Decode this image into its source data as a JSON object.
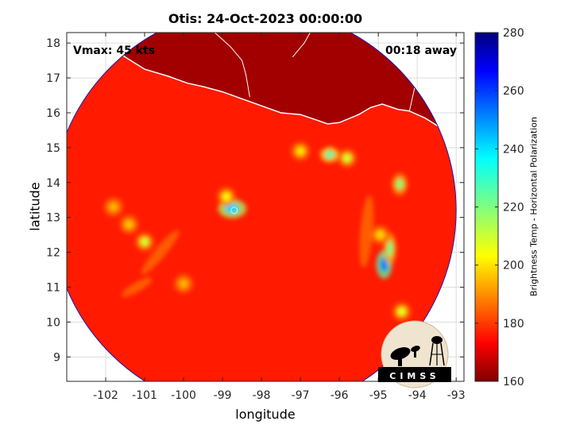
{
  "title": "Otis: 24-Oct-2023 00:00:00",
  "annotations": {
    "vmax": "Vmax: 45 kts",
    "away": "00:18 away"
  },
  "axes": {
    "xlabel": "longitude",
    "ylabel": "latitude",
    "xlim": [
      -103,
      -92.8
    ],
    "ylim": [
      8.3,
      18.3
    ],
    "xticks": [
      -102,
      -101,
      -100,
      -99,
      -98,
      -97,
      -96,
      -95,
      -94,
      -93
    ],
    "yticks": [
      9,
      10,
      11,
      12,
      13,
      14,
      15,
      16,
      17,
      18
    ],
    "grid": true
  },
  "colorbar": {
    "label": "Brightness Temp - Horizontal Polarization",
    "ticks": [
      160,
      180,
      200,
      220,
      240,
      260,
      280
    ],
    "range": [
      160,
      280
    ],
    "colormap": "jet",
    "location": "right"
  },
  "map": {
    "storm_center": {
      "lon": -98.7,
      "lat": 13.2
    },
    "swath_center": {
      "lon": -98.2,
      "lat": 13.2
    },
    "swath_radius_deg": 5.2,
    "background_temp": 262,
    "land_temp": 276,
    "features": [
      {
        "lon": -98.75,
        "lat": 13.25,
        "temp": 200
      },
      {
        "lon": -98.9,
        "lat": 13.6,
        "temp": 236
      },
      {
        "lon": -96.25,
        "lat": 14.8,
        "temp": 215
      },
      {
        "lon": -95.8,
        "lat": 14.7,
        "temp": 230
      },
      {
        "lon": -97.0,
        "lat": 14.9,
        "temp": 238
      },
      {
        "lon": -94.85,
        "lat": 11.65,
        "temp": 190
      },
      {
        "lon": -94.7,
        "lat": 12.1,
        "temp": 220
      },
      {
        "lon": -94.45,
        "lat": 13.95,
        "temp": 222
      },
      {
        "lon": -94.95,
        "lat": 12.5,
        "temp": 240
      },
      {
        "lon": -101.0,
        "lat": 12.3,
        "temp": 230
      },
      {
        "lon": -101.4,
        "lat": 12.8,
        "temp": 242
      },
      {
        "lon": -94.4,
        "lat": 10.3,
        "temp": 232
      },
      {
        "lon": -101.8,
        "lat": 13.3,
        "temp": 244
      },
      {
        "lon": -100.0,
        "lat": 11.1,
        "temp": 244
      }
    ]
  },
  "logo": {
    "text": "CIMSS"
  }
}
